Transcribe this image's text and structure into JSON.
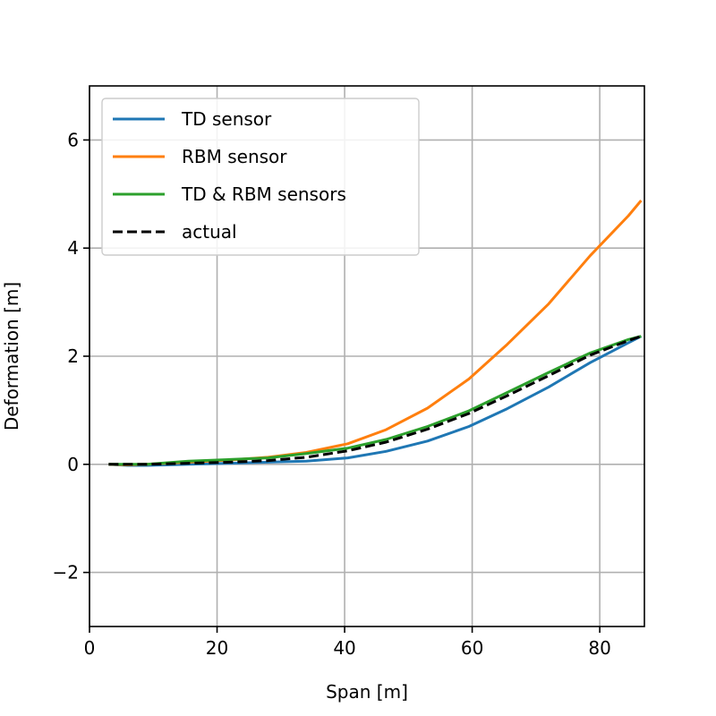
{
  "chart_data": {
    "type": "line",
    "title": "",
    "xlabel": "Span [m]",
    "ylabel": "Deformation [m]",
    "xlim": [
      0,
      87
    ],
    "ylim": [
      -3,
      7
    ],
    "xticks": [
      0,
      20,
      40,
      60,
      80
    ],
    "yticks": [
      -2,
      0,
      2,
      4,
      6
    ],
    "xtick_labels": [
      "0",
      "20",
      "40",
      "60",
      "80"
    ],
    "ytick_labels": [
      "−2",
      "0",
      "2",
      "4",
      "6"
    ],
    "grid": true,
    "legend_position": "top-left",
    "series": [
      {
        "name": "TD sensor",
        "color": "#1f77b4",
        "style": "solid",
        "x": [
          3,
          6,
          9,
          15.5,
          22,
          28,
          34,
          40.5,
          46.5,
          53,
          59.5,
          65.5,
          72,
          78.5,
          84.5,
          86.5
        ],
        "y": [
          0,
          -0.02,
          -0.02,
          0.0,
          0.02,
          0.04,
          0.06,
          0.12,
          0.24,
          0.43,
          0.7,
          1.03,
          1.43,
          1.88,
          2.25,
          2.37
        ]
      },
      {
        "name": "RBM sensor",
        "color": "#ff7f0e",
        "style": "solid",
        "x": [
          3,
          6,
          9,
          15.5,
          22,
          28,
          34,
          40.5,
          46.5,
          53,
          59.5,
          65.5,
          72,
          78.5,
          84.5,
          86.5
        ],
        "y": [
          0,
          -0.01,
          0.0,
          0.04,
          0.08,
          0.13,
          0.22,
          0.38,
          0.64,
          1.04,
          1.58,
          2.22,
          2.97,
          3.86,
          4.6,
          4.88
        ]
      },
      {
        "name": "TD & RBM sensors",
        "color": "#2ca02c",
        "style": "solid",
        "x": [
          3,
          6,
          9,
          15.5,
          22,
          28,
          34,
          40.5,
          46.5,
          53,
          59.5,
          65.5,
          72,
          78.5,
          84.5,
          86.5
        ],
        "y": [
          0,
          0.0,
          0.0,
          0.06,
          0.09,
          0.12,
          0.2,
          0.3,
          0.46,
          0.7,
          0.99,
          1.33,
          1.7,
          2.06,
          2.31,
          2.37
        ]
      },
      {
        "name": "actual",
        "color": "#000000",
        "style": "dashed",
        "x": [
          3,
          6,
          9,
          15.5,
          22,
          28,
          34,
          40.5,
          46.5,
          53,
          59.5,
          65.5,
          72,
          78.5,
          84.5,
          86.5
        ],
        "y": [
          0,
          0.0,
          0.0,
          0.02,
          0.04,
          0.07,
          0.13,
          0.25,
          0.41,
          0.65,
          0.94,
          1.27,
          1.64,
          2.02,
          2.29,
          2.37
        ]
      }
    ]
  }
}
